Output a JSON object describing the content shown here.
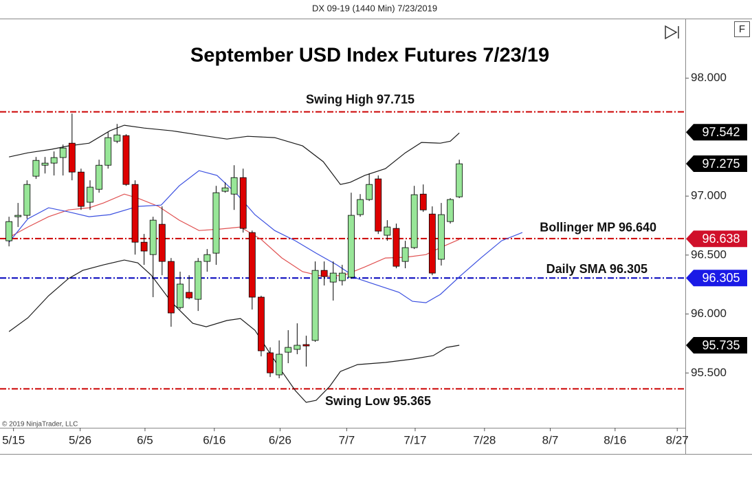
{
  "chart_data": {
    "type": "candlestick",
    "header": "DX 09-19 (1440 Min)  7/23/2019",
    "title": "September USD Index Futures 7/23/19",
    "copyright": "© 2019 NinjaTrader, LLC",
    "button_label": "F",
    "up_color": "#98e698",
    "down_color": "#dd0000",
    "open": [
      96.621,
      96.825,
      96.837,
      97.169,
      97.262,
      97.28,
      97.327,
      97.449,
      97.204,
      96.948,
      97.058,
      97.262,
      97.466,
      97.513,
      97.099,
      96.609,
      96.504,
      96.761,
      96.446,
      96.055,
      96.184,
      96.125,
      96.446,
      96.516,
      97.041,
      97.017,
      97.157,
      96.691,
      96.143,
      95.671,
      95.484,
      95.676,
      95.7,
      95.741,
      95.776,
      96.37,
      96.271,
      96.283,
      96.312,
      96.843,
      96.971,
      97.146,
      96.668,
      96.726,
      96.446,
      96.563,
      97.017,
      96.848,
      96.464,
      96.784,
      96.994
    ],
    "high": [
      96.825,
      96.942,
      97.134,
      97.332,
      97.332,
      97.379,
      97.437,
      97.7,
      97.233,
      97.134,
      97.309,
      97.542,
      97.612,
      97.525,
      97.134,
      96.679,
      96.825,
      96.913,
      96.475,
      96.359,
      96.329,
      96.475,
      96.551,
      97.087,
      97.117,
      97.262,
      97.233,
      96.708,
      96.155,
      95.717,
      95.776,
      95.863,
      95.921,
      95.816,
      96.446,
      96.446,
      96.446,
      96.417,
      97.029,
      97.017,
      97.192,
      97.175,
      96.796,
      96.767,
      96.621,
      97.087,
      97.099,
      96.913,
      96.942,
      96.983,
      97.309
    ],
    "low": [
      96.574,
      96.738,
      96.808,
      97.146,
      97.192,
      97.175,
      97.175,
      97.134,
      96.883,
      96.883,
      97.029,
      97.233,
      97.449,
      97.087,
      96.504,
      96.417,
      96.143,
      96.329,
      95.892,
      96.038,
      96.125,
      96.026,
      96.359,
      96.417,
      97.029,
      96.883,
      96.691,
      96.038,
      95.641,
      95.466,
      95.455,
      95.583,
      95.659,
      95.554,
      95.764,
      96.242,
      96.114,
      96.242,
      96.3,
      96.825,
      96.959,
      96.679,
      96.621,
      96.388,
      96.388,
      96.551,
      96.866,
      96.329,
      96.411,
      96.767,
      96.983
    ],
    "close": [
      96.784,
      96.837,
      97.099,
      97.303,
      97.28,
      97.327,
      97.408,
      97.204,
      96.913,
      97.076,
      97.262,
      97.496,
      97.519,
      97.099,
      96.609,
      96.534,
      96.796,
      96.446,
      96.009,
      96.254,
      96.137,
      96.446,
      96.504,
      97.029,
      97.07,
      97.157,
      96.726,
      96.143,
      95.688,
      95.501,
      95.659,
      95.717,
      95.735,
      95.729,
      96.37,
      96.318,
      96.347,
      96.347,
      96.837,
      96.971,
      97.099,
      96.703,
      96.738,
      96.405,
      96.563,
      97.012,
      96.883,
      96.347,
      96.843,
      96.971,
      97.274
    ],
    "lines": [
      {
        "color": "#1a1a1a",
        "x": [
          0,
          2.1,
          4.7,
          6.6,
          8.9,
          11.2,
          12.8,
          15.0,
          18.1,
          21.1,
          24.2,
          26.5,
          29.5,
          32.6,
          34.9,
          36.8,
          37.9,
          39.5,
          41.8,
          44.0,
          45.8,
          47.9,
          49.0,
          50.0
        ],
        "values": [
          97.332,
          97.367,
          97.397,
          97.426,
          97.449,
          97.554,
          97.601,
          97.577,
          97.554,
          97.519,
          97.484,
          97.507,
          97.496,
          97.426,
          97.292,
          97.099,
          97.117,
          97.175,
          97.233,
          97.367,
          97.455,
          97.449,
          97.466,
          97.536
        ]
      },
      {
        "color": "#1a1a1a",
        "x": [
          0,
          2.1,
          4.4,
          6.6,
          8.2,
          10.5,
          12.8,
          14.3,
          15.8,
          18.1,
          20.4,
          21.9,
          24.2,
          25.7,
          27.3,
          28.8,
          30.3,
          31.8,
          33.0,
          34.1,
          35.6,
          36.8,
          38.7,
          41.8,
          44.8,
          47.1,
          48.6,
          50.0
        ],
        "values": [
          95.851,
          95.968,
          96.155,
          96.3,
          96.37,
          96.417,
          96.458,
          96.434,
          96.329,
          96.096,
          95.921,
          95.892,
          95.945,
          95.962,
          95.863,
          95.688,
          95.513,
          95.35,
          95.251,
          95.268,
          95.385,
          95.513,
          95.571,
          95.589,
          95.618,
          95.647,
          95.717,
          95.735
        ]
      },
      {
        "color": "#e05050",
        "x": [
          0,
          2.1,
          4.4,
          6.6,
          8.9,
          10.5,
          12.8,
          14.3,
          16.6,
          18.9,
          21.1,
          23.4,
          25.7,
          28.0,
          30.3,
          32.6,
          34.9,
          37.2,
          39.5,
          41.8,
          44.0,
          46.3,
          47.9,
          50.0
        ],
        "values": [
          96.65,
          96.738,
          96.825,
          96.883,
          96.901,
          96.942,
          97.017,
          96.983,
          96.913,
          96.796,
          96.708,
          96.72,
          96.738,
          96.633,
          96.475,
          96.359,
          96.318,
          96.329,
          96.399,
          96.475,
          96.481,
          96.504,
          96.563,
          96.633
        ]
      },
      {
        "color": "#3a4fe0",
        "x": [
          0,
          2.1,
          4.4,
          6.6,
          8.9,
          11.2,
          14.3,
          16.9,
          18.9,
          21.1,
          23.1,
          25.3,
          27.3,
          29.5,
          31.8,
          34.1,
          36.4,
          38.7,
          41.0,
          43.3,
          44.8,
          46.3,
          47.9,
          50.2,
          52.4,
          54.7,
          57.0
        ],
        "values": [
          96.609,
          96.808,
          96.901,
          96.866,
          96.825,
          96.843,
          96.913,
          96.924,
          97.087,
          97.216,
          97.175,
          97.017,
          96.843,
          96.708,
          96.621,
          96.516,
          96.417,
          96.3,
          96.242,
          96.184,
          96.108,
          96.096,
          96.166,
          96.329,
          96.475,
          96.621,
          96.691
        ]
      }
    ],
    "levels": [
      {
        "label": "Swing High 97.715",
        "value": 97.715,
        "color": "#cc0000"
      },
      {
        "label": "Bollinger MP 96.640",
        "value": 96.64,
        "color": "#cc0000"
      },
      {
        "label": "Daily SMA 96.305",
        "value": 96.305,
        "color": "#0000bb"
      },
      {
        "label": "Swing Low 95.365",
        "value": 95.365,
        "color": "#cc0000"
      }
    ],
    "price_markers": [
      {
        "value": 97.542,
        "color": "#000000"
      },
      {
        "value": 97.275,
        "color": "#000000"
      },
      {
        "value": 96.638,
        "color": "#d0102a"
      },
      {
        "value": 96.305,
        "color": "#1a1ae6"
      },
      {
        "value": 95.735,
        "color": "#000000"
      }
    ],
    "xlim": [
      -1,
      75.1
    ],
    "xticks": [
      {
        "value": 0.5,
        "label": "5/15"
      },
      {
        "value": 7.9,
        "label": "5/26"
      },
      {
        "value": 15.1,
        "label": "6/5"
      },
      {
        "value": 22.8,
        "label": "6/16"
      },
      {
        "value": 30.1,
        "label": "6/26"
      },
      {
        "value": 37.5,
        "label": "7/7"
      },
      {
        "value": 45.1,
        "label": "7/17"
      },
      {
        "value": 52.8,
        "label": "7/28"
      },
      {
        "value": 60.1,
        "label": "8/7"
      },
      {
        "value": 67.3,
        "label": "8/16"
      },
      {
        "value": 74.2,
        "label": "8/27"
      }
    ],
    "ylim": [
      95.035,
      98.5
    ],
    "yticks": [
      {
        "value": 95.5,
        "label": "95.500"
      },
      {
        "value": 96,
        "label": "96.000"
      },
      {
        "value": 96.5,
        "label": "96.500"
      },
      {
        "value": 97,
        "label": "97.000"
      },
      {
        "value": 98,
        "label": "98.000"
      }
    ]
  }
}
